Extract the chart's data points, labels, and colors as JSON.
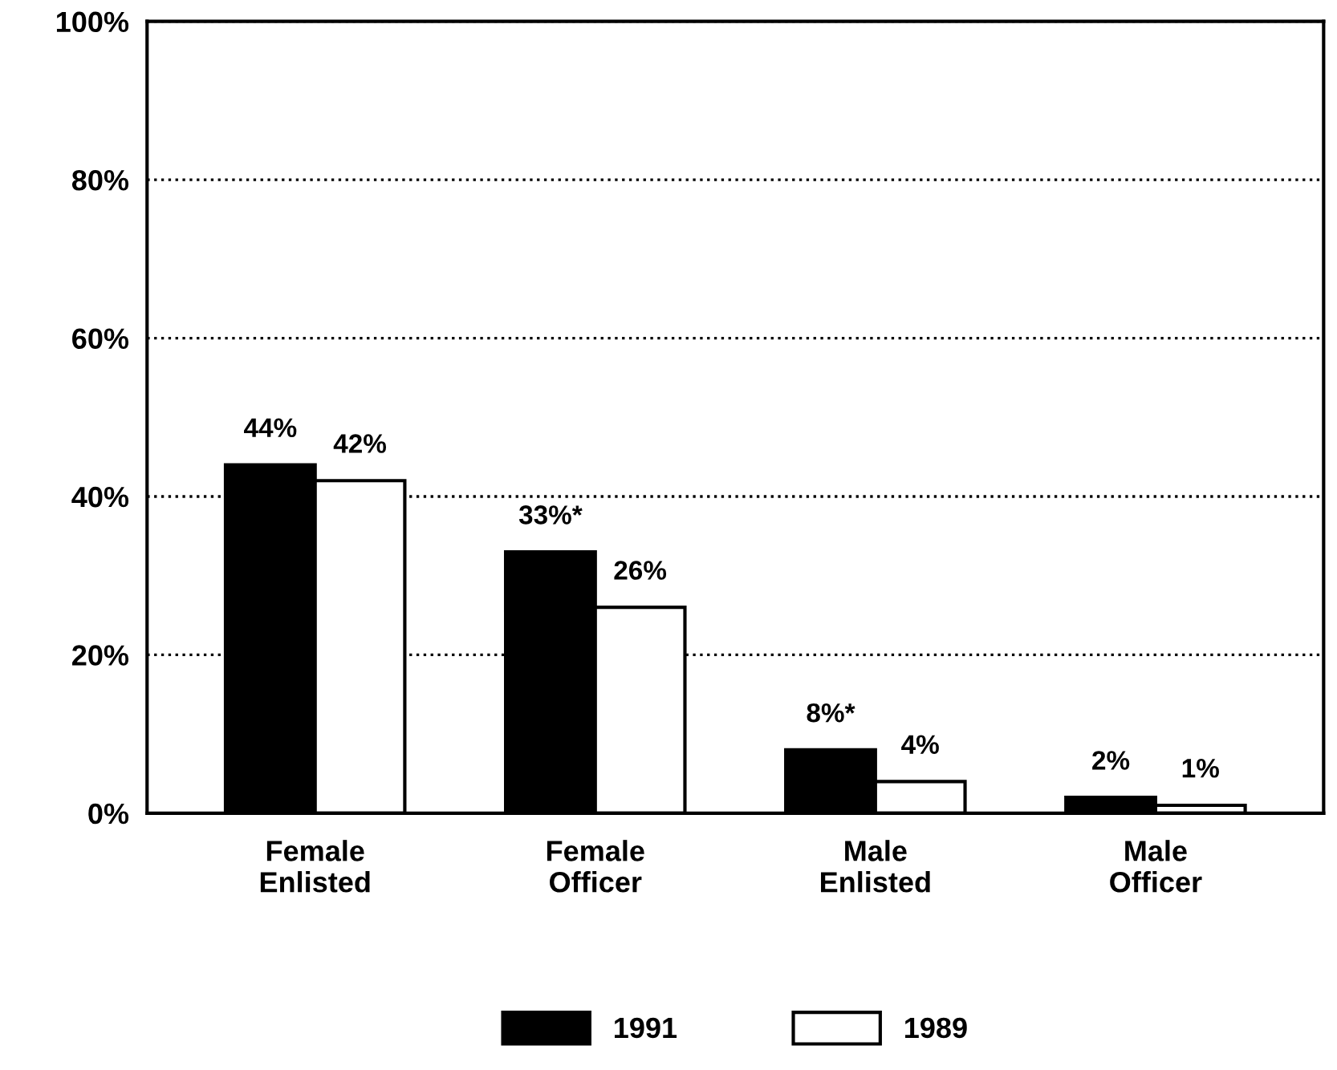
{
  "chart_data": {
    "type": "bar",
    "categories": [
      "Female\nEnlisted",
      "Female\nOfficer",
      "Male\nEnlisted",
      "Male\nOfficer"
    ],
    "series": [
      {
        "name": "1991",
        "color": "#000000",
        "values": [
          44,
          33,
          8,
          2
        ],
        "value_labels": [
          "44%",
          "33%*",
          "8%*",
          "2%"
        ]
      },
      {
        "name": "1989",
        "color": "#ffffff",
        "values": [
          42,
          26,
          4,
          1
        ],
        "value_labels": [
          "42%",
          "26%",
          "4%",
          "1%"
        ]
      }
    ],
    "ylim": [
      0,
      100
    ],
    "yticks": [
      {
        "value": 0,
        "label": "0%"
      },
      {
        "value": 20,
        "label": "20%"
      },
      {
        "value": 40,
        "label": "40%"
      },
      {
        "value": 60,
        "label": "60%"
      },
      {
        "value": 80,
        "label": "80%"
      },
      {
        "value": 100,
        "label": "100%"
      }
    ],
    "grid": "y",
    "line_style": "dotted",
    "legend": "bottom"
  }
}
